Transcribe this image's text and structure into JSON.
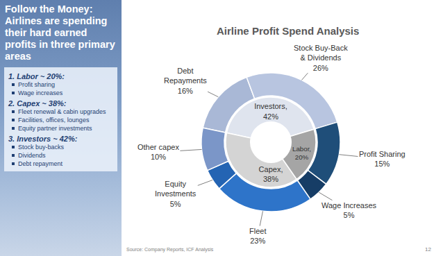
{
  "sidebar": {
    "heading": "Follow the Money: Airlines are spending their hard earned profits in three primary areas",
    "groups": [
      {
        "title": "1. Labor ~ 20%:",
        "items": [
          "Profit sharing",
          "Wage increases"
        ]
      },
      {
        "title": "2. Capex ~ 38%:",
        "items": [
          "Fleet renewal & cabin upgrades",
          "Facilities, offices, lounges",
          "Equity partner investments"
        ]
      },
      {
        "title": "3. Investors ~ 42%:",
        "items": [
          "Stock buy-backs",
          "Dividends",
          "Debt repayment"
        ]
      }
    ]
  },
  "chart_data": {
    "type": "pie",
    "title": "Airline Profit Spend Analysis",
    "data_labels": true,
    "inner": {
      "categories": [
        "Investors,",
        "Labor,",
        "Capex,"
      ],
      "values": [
        42,
        20,
        38
      ],
      "value_labels": [
        "42%",
        "20%",
        "38%"
      ],
      "colors": [
        "#dfe4ee",
        "#a5a5a5",
        "#d4d4d4"
      ]
    },
    "outer": {
      "categories": [
        "Debt Repayments",
        "Stock Buy-Back & Dividends",
        "Profit Sharing",
        "Wage Increases",
        "Fleet",
        "Equity Investments",
        "Other capex"
      ],
      "values": [
        16,
        26,
        15,
        5,
        23,
        5,
        10
      ],
      "value_labels": [
        "16%",
        "26%",
        "15%",
        "5%",
        "23%",
        "5%",
        "10%"
      ],
      "colors": [
        "#a9b8d6",
        "#b8c5e0",
        "#1f4e79",
        "#163d66",
        "#2e74c9",
        "#2464b3",
        "#7b96c8"
      ]
    }
  },
  "footer": {
    "source": "Source: Company Reports, ICF Analysis",
    "page": 12
  }
}
